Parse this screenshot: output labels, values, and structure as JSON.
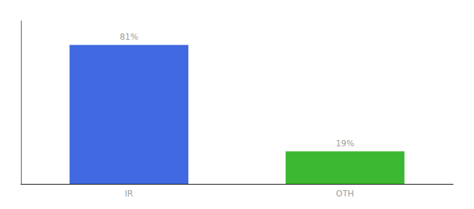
{
  "chart_data": {
    "type": "bar",
    "categories": [
      "IR",
      "OTH"
    ],
    "values": [
      81,
      19
    ],
    "value_labels": [
      "81%",
      "19%"
    ],
    "colors": [
      "#4169e1",
      "#3cb832"
    ],
    "data_labels": true,
    "ylim": [
      0,
      95
    ],
    "yticks": [],
    "tick_labels": "x",
    "grid": false
  }
}
